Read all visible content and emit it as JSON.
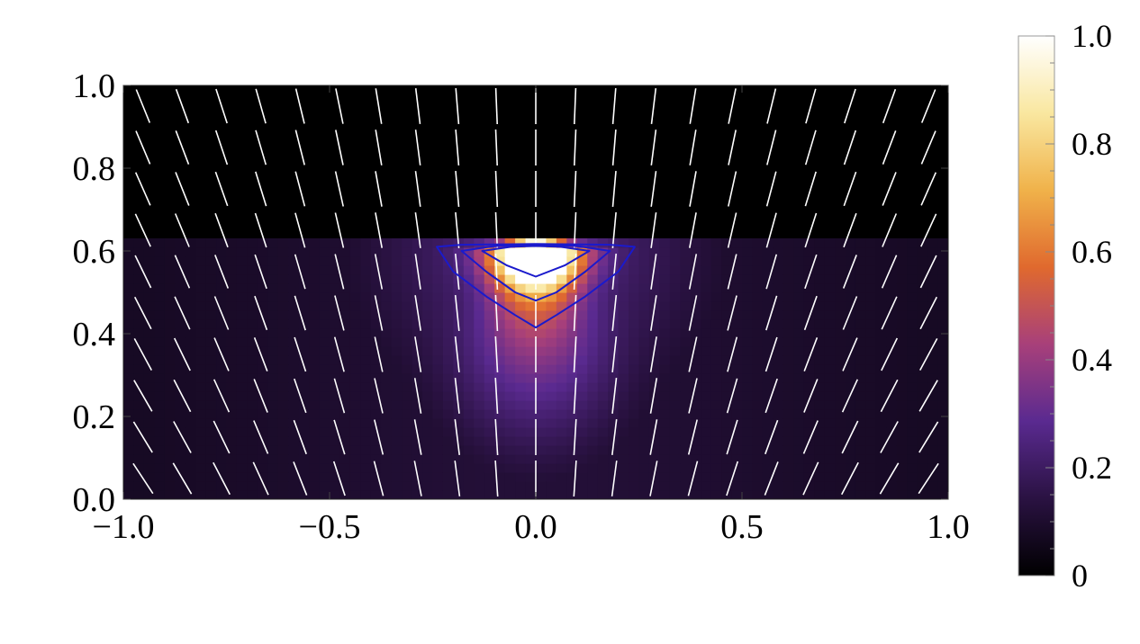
{
  "chart_data": {
    "type": "heatmap",
    "title": "",
    "xlabel": "",
    "ylabel": "",
    "xlim": [
      -1.0,
      1.0
    ],
    "ylim": [
      0.0,
      1.0
    ],
    "x_ticks": [
      "−1.0",
      "−0.5",
      "0.0",
      "0.5",
      "1.0"
    ],
    "x_tick_values": [
      -1.0,
      -0.5,
      0.0,
      0.5,
      1.0
    ],
    "y_ticks": [
      "0.0",
      "0.2",
      "0.4",
      "0.6",
      "0.8",
      "1.0"
    ],
    "y_tick_values": [
      0.0,
      0.2,
      0.4,
      0.6,
      0.8,
      1.0
    ],
    "colorbar": {
      "range": [
        0,
        1
      ],
      "ticks": [
        "0",
        "0.2",
        "0.4",
        "0.6",
        "0.8",
        "1.0"
      ],
      "tick_values": [
        0,
        0.2,
        0.4,
        0.6,
        0.8,
        1.0
      ],
      "colormap": [
        "#000000",
        "#2a1242",
        "#5a2a90",
        "#a8407a",
        "#e0692e",
        "#f0b24a",
        "#f9e7a0",
        "#ffffff"
      ]
    },
    "field": {
      "description_hidden": false,
      "boundary_y": 0.63,
      "peak": {
        "x": 0.0,
        "y": 0.6,
        "value": 1.0
      },
      "background_above_boundary": 0.0
    },
    "contour_levels": [
      0.5,
      0.7,
      0.9
    ],
    "contour_color": "#1a1acc",
    "contours": [
      {
        "level": 0.5,
        "points": [
          [
            -0.24,
            0.61
          ],
          [
            -0.2,
            0.55
          ],
          [
            -0.12,
            0.49
          ],
          [
            -0.05,
            0.445
          ],
          [
            0.0,
            0.415
          ],
          [
            0.05,
            0.445
          ],
          [
            0.12,
            0.49
          ],
          [
            0.2,
            0.55
          ],
          [
            0.24,
            0.61
          ],
          [
            0.18,
            0.615
          ],
          [
            0.0,
            0.617
          ],
          [
            -0.18,
            0.615
          ]
        ]
      },
      {
        "level": 0.7,
        "points": [
          [
            -0.18,
            0.6
          ],
          [
            -0.12,
            0.55
          ],
          [
            -0.05,
            0.5
          ],
          [
            0.0,
            0.48
          ],
          [
            0.05,
            0.5
          ],
          [
            0.12,
            0.55
          ],
          [
            0.18,
            0.6
          ],
          [
            0.1,
            0.612
          ],
          [
            0.0,
            0.614
          ],
          [
            -0.1,
            0.612
          ]
        ]
      },
      {
        "level": 0.9,
        "points": [
          [
            -0.13,
            0.6
          ],
          [
            -0.07,
            0.565
          ],
          [
            0.0,
            0.538
          ],
          [
            0.07,
            0.565
          ],
          [
            0.13,
            0.6
          ],
          [
            0.06,
            0.61
          ],
          [
            0.0,
            0.612
          ],
          [
            -0.06,
            0.61
          ]
        ]
      }
    ],
    "director_field": {
      "color": "#ffffff",
      "nx": 21,
      "ny": 10,
      "focus": {
        "x": 0.0,
        "y": -1.4
      }
    }
  }
}
